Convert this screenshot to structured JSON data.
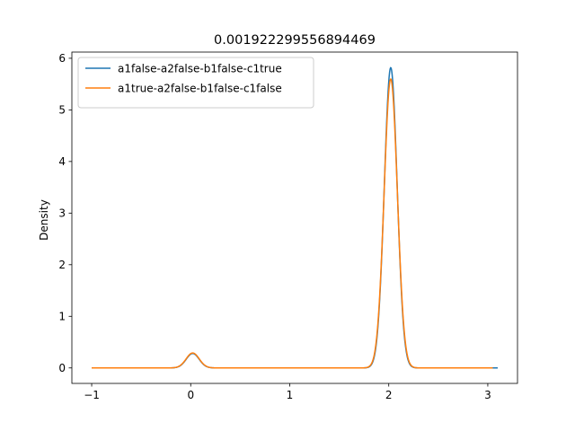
{
  "chart_data": {
    "type": "line",
    "title": "0.001922299556894469",
    "xlabel": "",
    "ylabel": "Density",
    "xlim": [
      -1.2,
      3.3
    ],
    "ylim": [
      -0.3,
      6.12
    ],
    "xticks": [
      -1,
      0,
      1,
      2,
      3
    ],
    "xtick_labels": [
      "−1",
      "0",
      "1",
      "2",
      "3"
    ],
    "yticks": [
      0,
      1,
      2,
      3,
      4,
      5,
      6
    ],
    "ytick_labels": [
      "0",
      "1",
      "2",
      "3",
      "4",
      "5",
      "6"
    ],
    "grid": false,
    "legend_position": "upper-left",
    "series": [
      {
        "name": "a1false-a2false-b1false-c1true",
        "color": "#1f77b4",
        "x_range": [
          -1.0,
          3.1
        ],
        "peaks": [
          {
            "mu": 0.02,
            "sigma": 0.065,
            "height": 0.28
          },
          {
            "mu": 2.02,
            "sigma": 0.065,
            "height": 5.82
          }
        ]
      },
      {
        "name": "a1true-a2false-b1false-c1false",
        "color": "#ff7f0e",
        "x_range": [
          -1.0,
          3.05
        ],
        "peaks": [
          {
            "mu": 0.02,
            "sigma": 0.066,
            "height": 0.29
          },
          {
            "mu": 2.02,
            "sigma": 0.067,
            "height": 5.6
          }
        ]
      }
    ]
  }
}
